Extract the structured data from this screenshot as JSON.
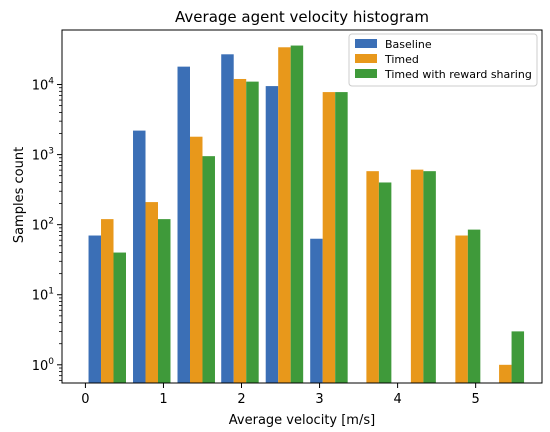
{
  "chart_data": {
    "type": "bar",
    "title": "Average agent velocity histogram",
    "xlabel": "Average velocity [m/s]",
    "ylabel": "Samples count",
    "y_scale": "log",
    "ylim": [
      0.55,
      60000
    ],
    "xlim": [
      -0.3,
      5.85
    ],
    "x_ticks": [
      0,
      1,
      2,
      3,
      4,
      5
    ],
    "x_tick_labels": [
      "0",
      "1",
      "2",
      "3",
      "4",
      "5"
    ],
    "y_ticks": [
      1,
      10,
      100,
      1000,
      10000
    ],
    "y_tick_labels": [
      {
        "base": "10",
        "exp": "0"
      },
      {
        "base": "10",
        "exp": "1"
      },
      {
        "base": "10",
        "exp": "2"
      },
      {
        "base": "10",
        "exp": "3"
      },
      {
        "base": "10",
        "exp": "4"
      }
    ],
    "bin_centers": [
      0.28,
      0.85,
      1.42,
      1.98,
      2.55,
      3.12,
      3.68,
      4.25,
      4.82,
      5.38
    ],
    "bar_width": 0.16,
    "legend_position": "top-right",
    "series": [
      {
        "name": "Baseline",
        "color": "#3b6fb6",
        "values": [
          70,
          2200,
          18000,
          27000,
          9500,
          63,
          null,
          null,
          null,
          null
        ]
      },
      {
        "name": "Timed",
        "color": "#e8981b",
        "values": [
          120,
          210,
          1800,
          12000,
          34000,
          7800,
          580,
          610,
          70,
          1
        ]
      },
      {
        "name": "Timed with reward sharing",
        "color": "#3f9a3a",
        "values": [
          40,
          120,
          950,
          11000,
          36000,
          7800,
          400,
          580,
          85,
          3
        ]
      }
    ]
  }
}
